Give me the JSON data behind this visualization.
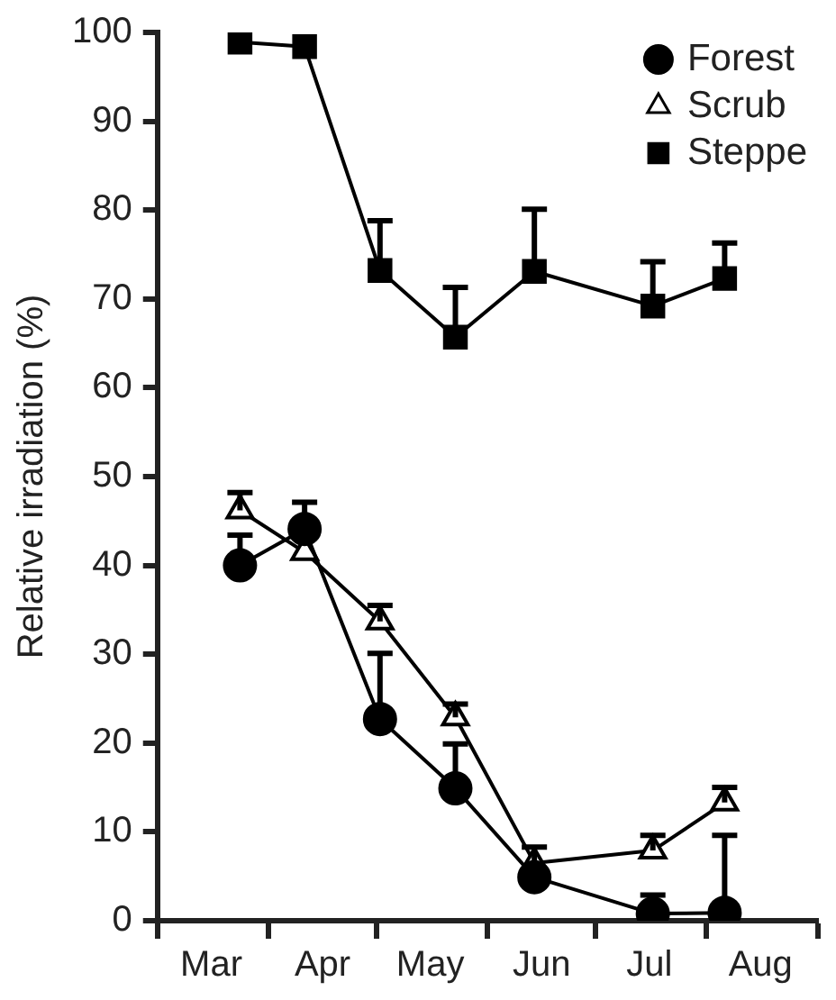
{
  "chart_data": {
    "type": "line",
    "ylabel": "Relative irradiation (%)",
    "x": [
      "--03-24",
      "--04-11",
      "--05-02",
      "--05-23",
      "--06-14",
      "--07-17",
      "--08-06"
    ],
    "xlim": [
      "--03-01",
      "--09-01"
    ],
    "xticks": [
      {
        "value": "--03-01",
        "label": null
      },
      {
        "value": "--03-16",
        "label": "Mar"
      },
      {
        "value": "--04-01",
        "label": null
      },
      {
        "value": "--04-16",
        "label": "Apr"
      },
      {
        "value": "--05-01",
        "label": null
      },
      {
        "value": "--05-16",
        "label": "May"
      },
      {
        "value": "--06-01",
        "label": null
      },
      {
        "value": "--06-16",
        "label": "Jun"
      },
      {
        "value": "--07-01",
        "label": null
      },
      {
        "value": "--07-16",
        "label": "Jul"
      },
      {
        "value": "--08-01",
        "label": null
      },
      {
        "value": "--08-16",
        "label": "Aug"
      },
      {
        "value": "--09-01",
        "label": null
      }
    ],
    "ylim": [
      0,
      100
    ],
    "yticks": [
      0,
      10,
      20,
      30,
      40,
      50,
      60,
      70,
      80,
      90,
      100
    ],
    "grid": false,
    "legend": "top right",
    "line_style": "solid",
    "series": [
      {
        "name": "Forest",
        "color": "#000000",
        "marker": "circle",
        "values": [
          40,
          44.1,
          22.7,
          14.9,
          4.9,
          0.8,
          0.9
        ],
        "errors": [
          [
            40,
            43.4
          ],
          [
            44.1,
            47.1
          ],
          [
            22.7,
            30.1
          ],
          [
            14.9,
            19.9
          ],
          null,
          [
            0.8,
            2.9
          ],
          [
            0.9,
            9.6
          ]
        ]
      },
      {
        "name": "Scrub",
        "color": "#000000",
        "marker": "triangle",
        "values": [
          46.2,
          41.5,
          33.7,
          22.9,
          6.5,
          7.9,
          13.3
        ],
        "errors": [
          [
            46.2,
            48.2
          ],
          null,
          [
            33.7,
            35.5
          ],
          [
            22.9,
            24.4
          ],
          [
            6.5,
            8.3
          ],
          [
            7.9,
            9.6
          ],
          [
            13.3,
            15
          ]
        ]
      },
      {
        "name": "Steppe",
        "color": "#000000",
        "marker": "square",
        "values": [
          98.9,
          98.4,
          73.2,
          65.7,
          73.1,
          69.2,
          72.3
        ],
        "errors": [
          null,
          null,
          [
            73.2,
            78.8
          ],
          [
            65.7,
            71.3
          ],
          [
            73.1,
            80.1
          ],
          [
            69.2,
            74.2
          ],
          [
            72.3,
            76.3
          ]
        ]
      }
    ]
  }
}
